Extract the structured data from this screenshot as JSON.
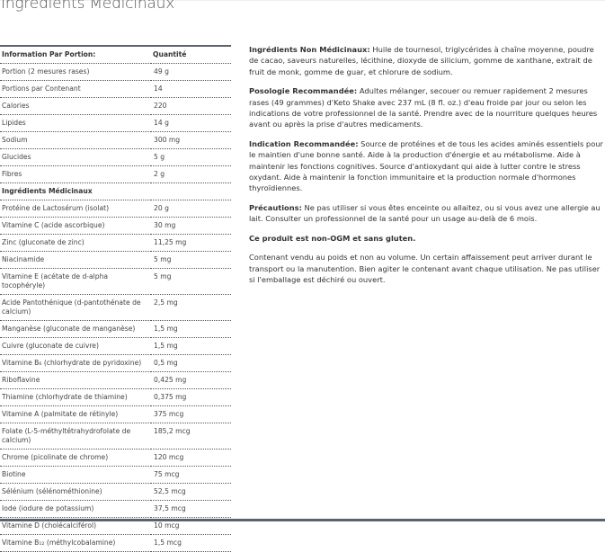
{
  "title": "Ingrédients Médicinaux",
  "table": {
    "headers": [
      "Information Par Portion:",
      "Quantité"
    ],
    "rows": [
      {
        "name": "Portion (2 mesures rases)",
        "qty": "49 g"
      },
      {
        "name": "Portions par Contenant",
        "qty": "14"
      },
      {
        "name": "Calories",
        "qty": "220"
      },
      {
        "name": "Lipides",
        "qty": "14 g"
      },
      {
        "name": "Sodium",
        "qty": "300 mg"
      },
      {
        "name": "Glucides",
        "qty": "5 g"
      },
      {
        "name": "Fibres",
        "qty": "2 g"
      }
    ],
    "section_label": "Ingrédients Médicinaux",
    "medicinal_rows": [
      {
        "name": "Protéine de Lactosérum (isolat)",
        "qty": "20 g"
      },
      {
        "name": "Vitamine C (acide ascorbique)",
        "qty": "30 mg"
      },
      {
        "name": "Zinc (gluconate de zinc)",
        "qty": "11,25 mg"
      },
      {
        "name": "Niacinamide",
        "qty": "5 mg"
      },
      {
        "name": "Vitamine E (acétate de d-alpha tocophéryle)",
        "qty": "5 mg"
      },
      {
        "name": "Acide Pantothénique (d-pantothénate de calcium)",
        "qty": "2,5 mg"
      },
      {
        "name": "Manganèse (gluconate de manganèse)",
        "qty": "1,5 mg"
      },
      {
        "name": "Cuivre (gluconate de cuivre)",
        "qty": "1,5 mg"
      },
      {
        "name": "Vitamine B₆ (chlorhydrate de pyridoxine)",
        "qty": "0,5 mg"
      },
      {
        "name": "Riboflavine",
        "qty": "0,425 mg"
      },
      {
        "name": "Thiamine (chlorhydrate de thiamine)",
        "qty": "0,375 mg"
      },
      {
        "name": "Vitamine A (palmitate de rétinyle)",
        "qty": "375 mcg"
      },
      {
        "name": "Folate (L-5-méthyltétrahydrofolate de calcium)",
        "qty": "185,2 mcg"
      },
      {
        "name": "Chrome (picolinate de chrome)",
        "qty": "120 mcg"
      },
      {
        "name": "Biotine",
        "qty": "75 mcg"
      },
      {
        "name": "Sélénium (sélénométhionine)",
        "qty": "52,5 mcg"
      },
      {
        "name": "Iode (iodure de potassium)",
        "qty": "37,5 mcg"
      },
      {
        "name": "Vitamine D (cholécalciférol)",
        "qty": "10 mcg"
      },
      {
        "name": "Vitamine B₁₂ (méthylcobalamine)",
        "qty": "1,5 mcg"
      }
    ]
  },
  "info": {
    "non_med_label": "Ingrédients Non Médicinaux:",
    "non_med_text": " Huile de tournesol, triglycérides à chaîne moyenne, poudre de cacao, saveurs naturelles, lécithine, dioxyde de silicium, gomme de xanthane, extrait de fruit de monk, gomme de guar, et chlorure de sodium.",
    "dosage_label": "Posologie Recommandée:",
    "dosage_text": " Adultes mélanger, secouer ou remuer rapidement 2 mesures rases (49 grammes) d'Keto Shake avec 237 mL (8 fl. oz.) d'eau froide par jour ou selon les indications de votre professionnel de la santé. Prendre avec de la nourriture quelques heures avant ou après la prise d'autres medicaments.",
    "indication_label": "Indication Recommandée:",
    "indication_text": " Source de protéines et de tous les acides aminés essentiels pour le maintien d'une bonne santé. Aide à la production d'énergie et au métabolisme. Aide à maintenir les fonctions cognitives. Source d'antioxydant qui aide à lutter contre le stress oxydant. Aide à maintenir la fonction immunitaire et la production normale d'hormones thyroïdiennes.",
    "caution_label": "Précautions:",
    "caution_text": " Ne pas utiliser si vous êtes enceinte ou allaitez, ou si vous avez une allergie au lait. Consulter un professionnel de la santé pour un usage au-delà de 6 mois.",
    "gmo_text": "Ce produit est non-OGM et sans gluten.",
    "container_text": "Contenant vendu au poids et non au volume. Un certain affaissement peut arriver durant le transport ou la manutention. Bien agiter le contenant avant chaque utilisation. Ne pas utiliser si l'emballage est déchiré ou ouvert."
  }
}
